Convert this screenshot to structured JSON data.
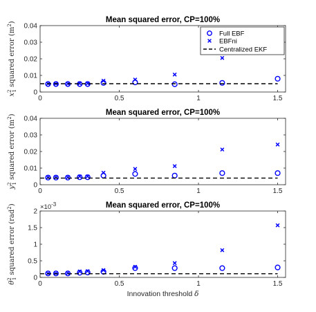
{
  "chart_data": [
    {
      "type": "scatter",
      "title": "Mean squared error, CP=100%",
      "ylabel": "x_1^2 squared error (m^2)",
      "ylabel_parts": {
        "sym": "x",
        "sub": "1",
        "sup": "2",
        "text": " squared error (m",
        "unit_sup": "2",
        "close": ")"
      },
      "xlim": [
        0,
        1.55
      ],
      "ylim": [
        0,
        0.04
      ],
      "xticks": [
        0,
        0.5,
        1,
        1.5
      ],
      "xtick_labels": [
        "0",
        "0.5",
        "1",
        "1.5"
      ],
      "yticks": [
        0,
        0.01,
        0.02,
        0.03,
        0.04
      ],
      "ytick_labels": [
        "0",
        "0.01",
        "0.02",
        "0.03",
        "0.04"
      ],
      "legend": {
        "placement": "top-right",
        "entries": [
          "Full EBF",
          "EBFni",
          "Centralized EKF"
        ]
      },
      "x": [
        0.05,
        0.1,
        0.175,
        0.25,
        0.3,
        0.4,
        0.6,
        0.85,
        1.15,
        1.5
      ],
      "series": [
        {
          "name": "Full EBF",
          "marker": "circle",
          "values": [
            0.0048,
            0.0048,
            0.0048,
            0.0048,
            0.0048,
            0.0055,
            0.0058,
            0.0047,
            0.0055,
            0.008
          ]
        },
        {
          "name": "EBFni",
          "marker": "x",
          "values": [
            0.005,
            0.005,
            0.005,
            0.0052,
            0.0052,
            0.0068,
            0.0075,
            0.0105,
            0.0205,
            0.034
          ]
        },
        {
          "name": "Centralized EKF",
          "marker": "dashed-line",
          "values": [
            0.005,
            0.005
          ]
        }
      ],
      "line_x": [
        0,
        1.5
      ]
    },
    {
      "type": "scatter",
      "title": "Mean squared error, CP=100%",
      "ylabel": "y_1^2 squared error (m^2)",
      "ylabel_parts": {
        "sym": "y",
        "sub": "1",
        "sup": "2",
        "text": " squared error (m",
        "unit_sup": "2",
        "close": ")"
      },
      "xlim": [
        0,
        1.55
      ],
      "ylim": [
        0,
        0.04
      ],
      "xticks": [
        0,
        0.5,
        1,
        1.5
      ],
      "xtick_labels": [
        "0",
        "0.5",
        "1",
        "1.5"
      ],
      "yticks": [
        0,
        0.01,
        0.02,
        0.03,
        0.04
      ],
      "ytick_labels": [
        "0",
        "0.01",
        "0.02",
        "0.03",
        "0.04"
      ],
      "x": [
        0.05,
        0.1,
        0.175,
        0.25,
        0.3,
        0.4,
        0.6,
        0.85,
        1.15,
        1.5
      ],
      "series": [
        {
          "name": "Full EBF",
          "marker": "circle",
          "values": [
            0.0043,
            0.0043,
            0.0043,
            0.0045,
            0.0045,
            0.0055,
            0.0065,
            0.0055,
            0.007,
            0.007
          ]
        },
        {
          "name": "EBFni",
          "marker": "x",
          "values": [
            0.0045,
            0.0045,
            0.0045,
            0.005,
            0.005,
            0.0072,
            0.0095,
            0.0112,
            0.0212,
            0.0242
          ]
        },
        {
          "name": "Centralized EKF",
          "marker": "dashed-line",
          "values": [
            0.004,
            0.004
          ]
        }
      ],
      "line_x": [
        0,
        1.5
      ]
    },
    {
      "type": "scatter",
      "title": "Mean squared error, CP=100%",
      "ylabel": "theta_1^2 squared error (rad^2)",
      "ylabel_parts": {
        "sym": "θ",
        "sub": "1",
        "sup": "2",
        "text": " squared error (rad",
        "unit_sup": "2",
        "close": ")"
      },
      "xlabel": "Innovation threshold δ",
      "xlabel_parts": {
        "text": "Innovation threshold ",
        "sym": "δ"
      },
      "exponent_label": {
        "base": "×10",
        "power": "-3"
      },
      "xlim": [
        0,
        1.55
      ],
      "ylim": [
        0,
        0.002
      ],
      "xticks": [
        0,
        0.5,
        1,
        1.5
      ],
      "xtick_labels": [
        "0",
        "0.5",
        "1",
        "1.5"
      ],
      "yticks": [
        0,
        0.0005,
        0.001,
        0.0015,
        0.002
      ],
      "ytick_labels": [
        "0",
        "0.5",
        "1",
        "1.5",
        "2"
      ],
      "x": [
        0.05,
        0.1,
        0.175,
        0.25,
        0.3,
        0.4,
        0.6,
        0.85,
        1.15,
        1.5
      ],
      "series": [
        {
          "name": "Full EBF",
          "marker": "circle",
          "values": [
            0.00012,
            0.00012,
            0.00012,
            0.00014,
            0.00015,
            0.00017,
            0.00028,
            0.00028,
            0.00028,
            0.0003
          ]
        },
        {
          "name": "EBFni",
          "marker": "x",
          "values": [
            0.00012,
            0.00012,
            0.00013,
            0.00018,
            0.00019,
            0.00022,
            0.00032,
            0.00043,
            0.00082,
            0.00157
          ]
        },
        {
          "name": "Centralized EKF",
          "marker": "dashed-line",
          "values": [
            0.00011,
            0.00011
          ]
        }
      ],
      "line_x": [
        0,
        1.5
      ]
    }
  ],
  "colors": {
    "marker": "#0000ff",
    "line": "#000000",
    "axes": "#262626"
  }
}
